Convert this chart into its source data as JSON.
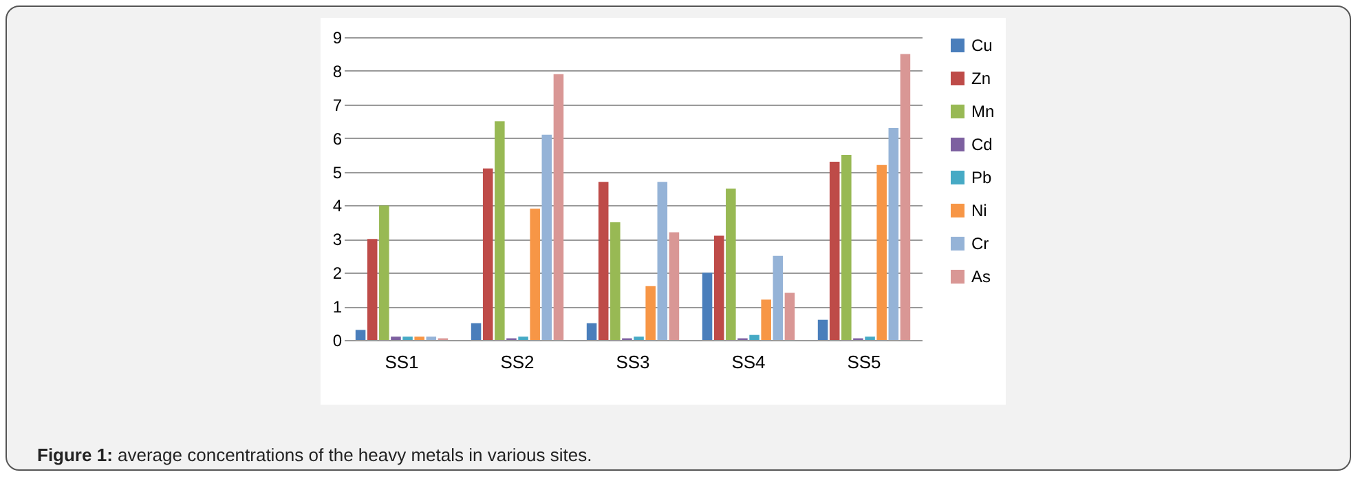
{
  "chart_data": {
    "type": "bar",
    "categories": [
      "SS1",
      "SS2",
      "SS3",
      "SS4",
      "SS5"
    ],
    "series": [
      {
        "name": "Cu",
        "color": "#4a7ebb",
        "values": [
          0.3,
          0.5,
          0.5,
          2.0,
          0.6
        ]
      },
      {
        "name": "Zn",
        "color": "#be4b48",
        "values": [
          3.0,
          5.1,
          4.7,
          3.1,
          5.3
        ]
      },
      {
        "name": "Mn",
        "color": "#98b954",
        "values": [
          4.0,
          6.5,
          3.5,
          4.5,
          5.5
        ]
      },
      {
        "name": "Cd",
        "color": "#7d60a0",
        "values": [
          0.1,
          0.05,
          0.05,
          0.05,
          0.05
        ]
      },
      {
        "name": "Pb",
        "color": "#46aac5",
        "values": [
          0.1,
          0.1,
          0.1,
          0.15,
          0.1
        ]
      },
      {
        "name": "Ni",
        "color": "#f79646",
        "values": [
          0.1,
          3.9,
          1.6,
          1.2,
          5.2
        ]
      },
      {
        "name": "Cr",
        "color": "#95b3d7",
        "values": [
          0.1,
          6.1,
          4.7,
          2.5,
          6.3
        ]
      },
      {
        "name": "As",
        "color": "#d99795",
        "values": [
          0.05,
          7.9,
          3.2,
          1.4,
          8.5
        ]
      }
    ],
    "ylim": [
      0,
      9
    ],
    "yticks": [
      0,
      1,
      2,
      3,
      4,
      5,
      6,
      7,
      8,
      9
    ],
    "grid": "y",
    "legend": "right",
    "annotations": [
      "Figure 1: average concentrations of the heavy metals in various sites."
    ]
  }
}
